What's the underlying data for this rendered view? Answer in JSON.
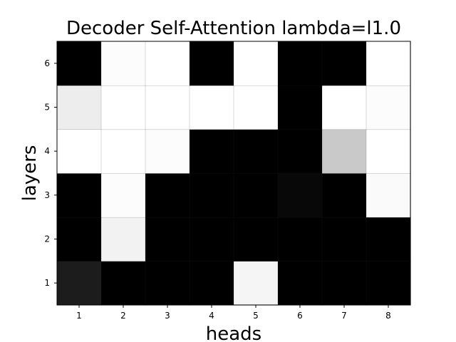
{
  "chart_data": {
    "type": "heatmap",
    "title": "Decoder Self-Attention lambda=l1.0",
    "xlabel": "heads",
    "ylabel": "layers",
    "x_categories": [
      "1",
      "2",
      "3",
      "4",
      "5",
      "6",
      "7",
      "8"
    ],
    "y_categories": [
      "1",
      "2",
      "3",
      "4",
      "5",
      "6"
    ],
    "colormap": "gray",
    "value_range": [
      0,
      1
    ],
    "grid": false,
    "values": [
      [
        0.11,
        0.0,
        0.0,
        0.0,
        0.96,
        0.0,
        0.0,
        0.0
      ],
      [
        0.0,
        0.95,
        0.0,
        0.0,
        0.0,
        0.0,
        0.0,
        0.0
      ],
      [
        0.0,
        0.99,
        0.0,
        0.0,
        0.0,
        0.03,
        0.0,
        0.98
      ],
      [
        1.0,
        1.0,
        0.99,
        0.0,
        0.0,
        0.0,
        0.79,
        1.0
      ],
      [
        0.93,
        1.0,
        1.0,
        1.0,
        1.0,
        0.0,
        1.0,
        0.99
      ],
      [
        0.0,
        0.99,
        1.0,
        0.0,
        1.0,
        0.0,
        0.0,
        1.0
      ]
    ]
  }
}
